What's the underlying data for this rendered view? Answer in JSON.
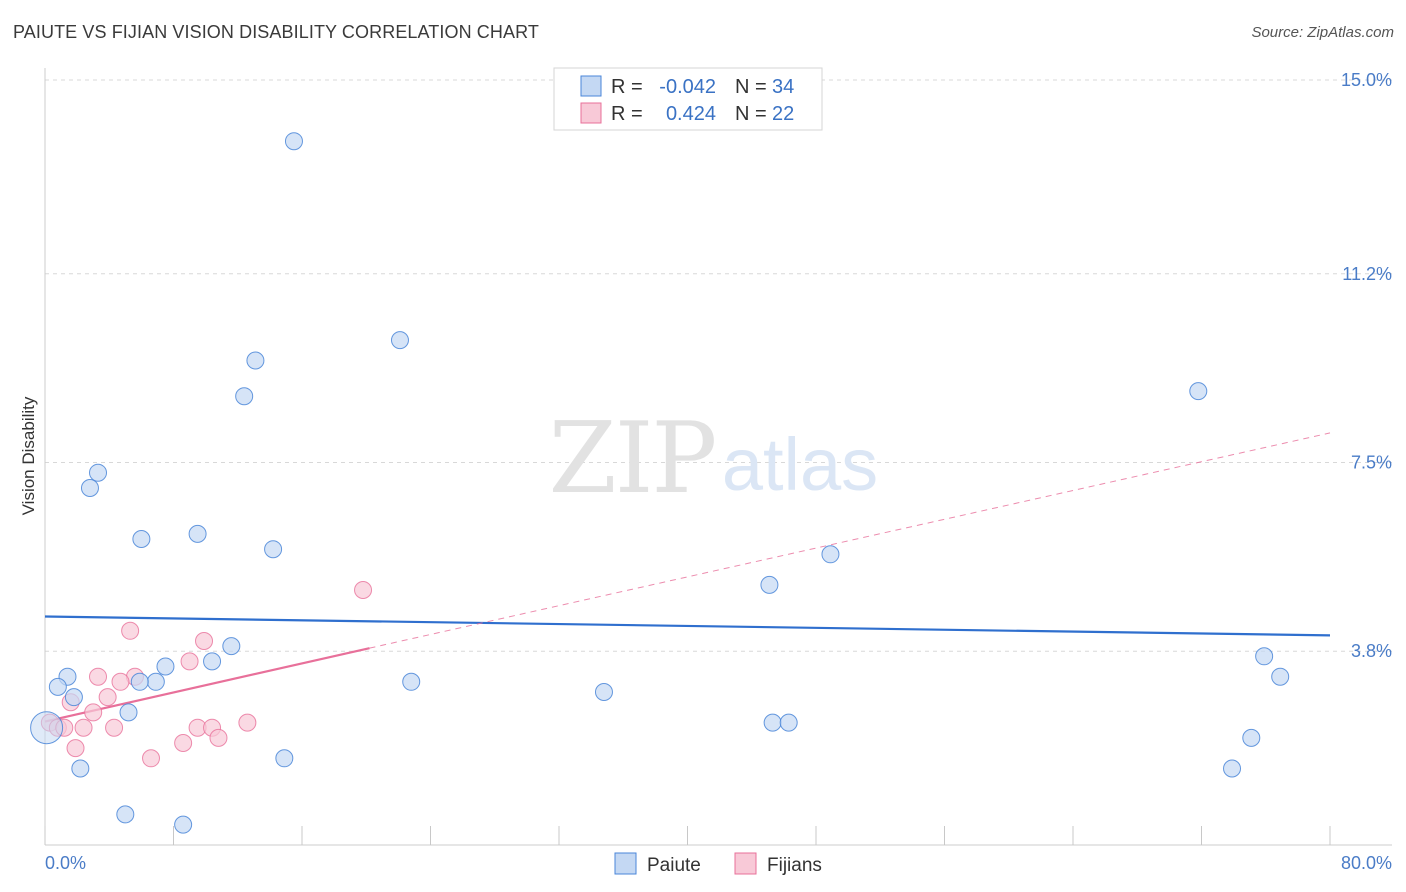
{
  "title": "PAIUTE VS FIJIAN VISION DISABILITY CORRELATION CHART",
  "source": "Source: ZipAtlas.com",
  "colors": {
    "paiute": "#4a86d8",
    "paiute_fill": "#c4d8f3",
    "paiute_line": "#2f6fce",
    "fijians": "#e8709a",
    "fijians_fill": "#f8c9d7",
    "grid": "#d8d8d8",
    "tick_text": "#4a7cc7"
  },
  "legend": {
    "r_label": "R =",
    "n_label": "N =",
    "paiute_r": "-0.042",
    "paiute_n": "34",
    "fijians_r": "0.424",
    "fijians_n": "22"
  },
  "watermark": {
    "zip": "ZIP",
    "atlas": "atlas"
  },
  "chart_data": {
    "type": "scatter",
    "title": "PAIUTE VS FIJIAN VISION DISABILITY CORRELATION CHART",
    "xlabel": "",
    "ylabel": "Vision Disability",
    "xlim": [
      0,
      80
    ],
    "ylim": [
      0,
      15
    ],
    "x_tick_labels": [
      "0.0%",
      "80.0%"
    ],
    "y_ticks": [
      3.8,
      7.5,
      11.2,
      15.0
    ],
    "y_tick_labels": [
      "3.8%",
      "7.5%",
      "11.2%",
      "15.0%"
    ],
    "series": [
      {
        "name": "Paiute",
        "points": [
          [
            15.5,
            13.8
          ],
          [
            22.1,
            9.9
          ],
          [
            13.1,
            9.5
          ],
          [
            12.4,
            8.8
          ],
          [
            71.8,
            8.9
          ],
          [
            3.3,
            7.3
          ],
          [
            2.8,
            7.0
          ],
          [
            6.0,
            6.0
          ],
          [
            9.5,
            6.1
          ],
          [
            14.2,
            5.8
          ],
          [
            48.9,
            5.7
          ],
          [
            45.1,
            5.1
          ],
          [
            11.6,
            3.9
          ],
          [
            10.4,
            3.6
          ],
          [
            7.5,
            3.5
          ],
          [
            6.9,
            3.2
          ],
          [
            5.9,
            3.2
          ],
          [
            1.4,
            3.3
          ],
          [
            0.8,
            3.1
          ],
          [
            1.8,
            2.9
          ],
          [
            5.2,
            2.6
          ],
          [
            22.8,
            3.2
          ],
          [
            34.8,
            3.0
          ],
          [
            75.9,
            3.7
          ],
          [
            76.9,
            3.3
          ],
          [
            45.3,
            2.4
          ],
          [
            46.3,
            2.4
          ],
          [
            75.1,
            2.1
          ],
          [
            73.9,
            1.5
          ],
          [
            14.9,
            1.7
          ],
          [
            2.2,
            1.5
          ],
          [
            5.0,
            0.6
          ],
          [
            8.6,
            0.4
          ],
          [
            0.1,
            2.3
          ]
        ],
        "trend": {
          "x": [
            0,
            80
          ],
          "y": [
            4.48,
            4.11
          ]
        }
      },
      {
        "name": "Fijians",
        "points": [
          [
            19.8,
            5.0
          ],
          [
            5.3,
            4.2
          ],
          [
            9.9,
            4.0
          ],
          [
            9.0,
            3.6
          ],
          [
            5.6,
            3.3
          ],
          [
            3.3,
            3.3
          ],
          [
            4.7,
            3.2
          ],
          [
            3.9,
            2.9
          ],
          [
            1.6,
            2.8
          ],
          [
            3.0,
            2.6
          ],
          [
            0.3,
            2.4
          ],
          [
            12.6,
            2.4
          ],
          [
            0.8,
            2.3
          ],
          [
            1.2,
            2.3
          ],
          [
            2.4,
            2.3
          ],
          [
            4.3,
            2.3
          ],
          [
            9.5,
            2.3
          ],
          [
            10.4,
            2.3
          ],
          [
            10.8,
            2.1
          ],
          [
            8.6,
            2.0
          ],
          [
            1.9,
            1.9
          ],
          [
            6.6,
            1.7
          ]
        ],
        "trend": {
          "x": [
            0,
            20.2
          ],
          "y": [
            2.42,
            3.86
          ]
        },
        "trend_extended": {
          "x": [
            20.2,
            80
          ],
          "y": [
            3.86,
            8.08
          ]
        }
      }
    ]
  },
  "bottom_legend": {
    "paiute": "Paiute",
    "fijians": "Fijians"
  }
}
